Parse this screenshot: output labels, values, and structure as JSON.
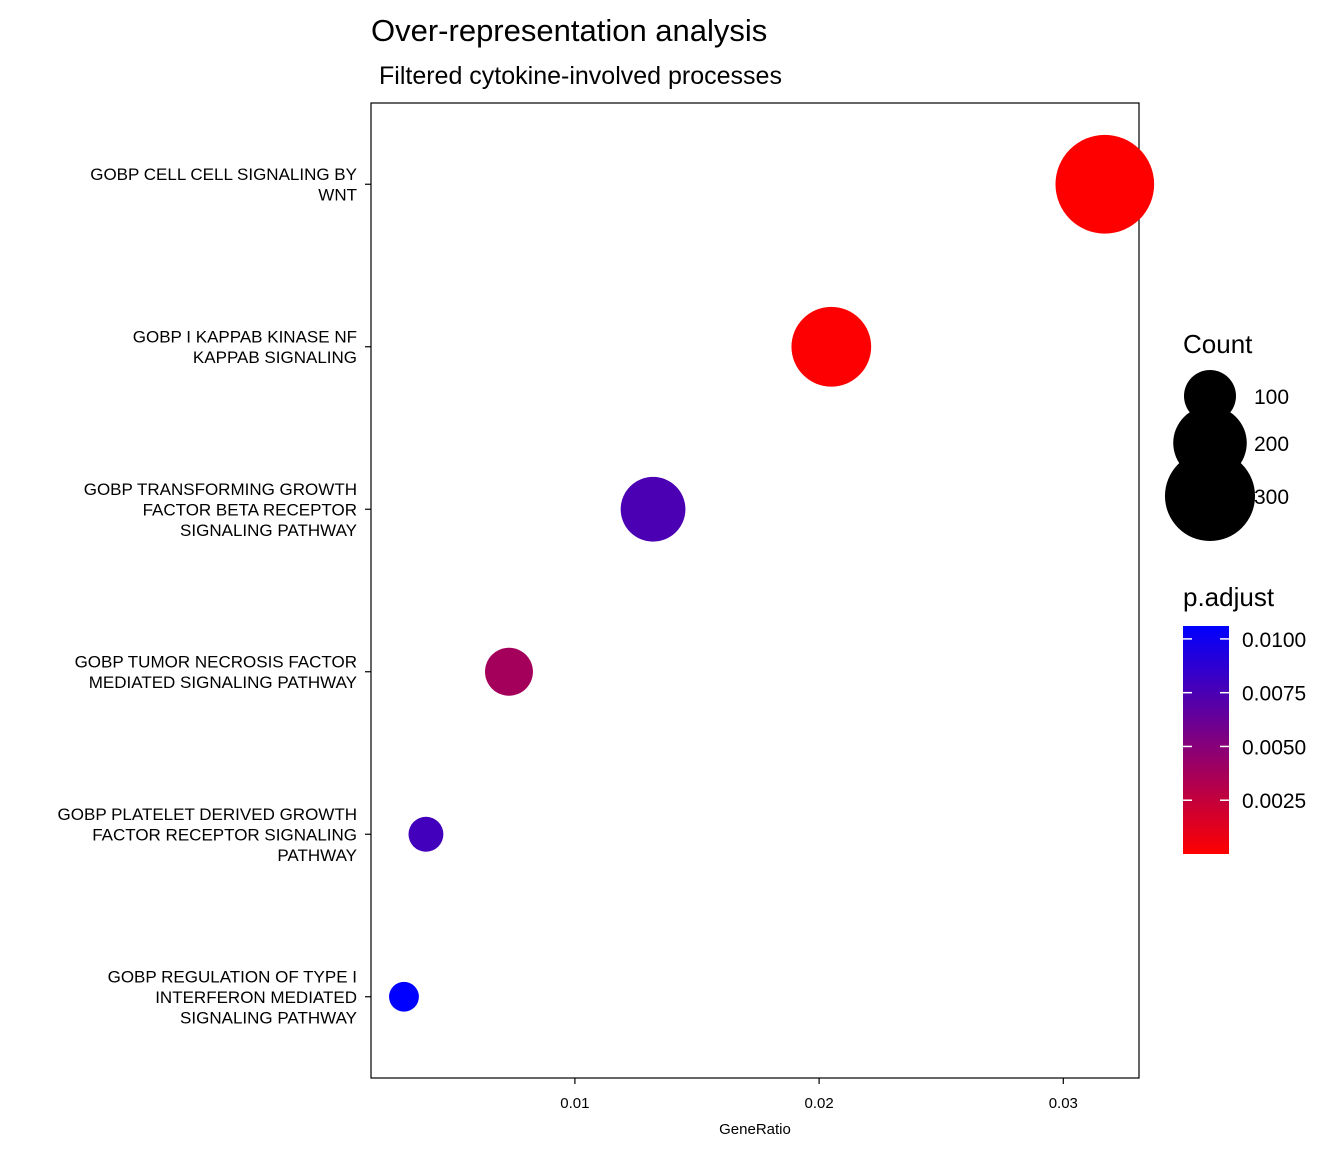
{
  "chart_data": {
    "type": "scatter",
    "title": "Over-representation analysis",
    "subtitle": "Filtered cytokine-involved processes",
    "xlabel": "GeneRatio",
    "ylabel": "",
    "xlim": [
      0.00165,
      0.0331
    ],
    "xticks": [
      0.01,
      0.02,
      0.03
    ],
    "xtick_labels": [
      "0.01",
      "0.02",
      "0.03"
    ],
    "categories": [
      [
        "GOBP CELL CELL SIGNALING BY",
        "WNT"
      ],
      [
        "GOBP I KAPPAB KINASE NF",
        "KAPPAB SIGNALING"
      ],
      [
        "GOBP TRANSFORMING GROWTH",
        "FACTOR BETA RECEPTOR",
        "SIGNALING PATHWAY"
      ],
      [
        "GOBP TUMOR NECROSIS FACTOR",
        "MEDIATED SIGNALING PATHWAY"
      ],
      [
        "GOBP PLATELET DERIVED GROWTH",
        "FACTOR RECEPTOR SIGNALING",
        "PATHWAY"
      ],
      [
        "GOBP REGULATION OF TYPE I",
        "INTERFERON MEDIATED",
        "SIGNALING PATHWAY"
      ]
    ],
    "points": [
      {
        "gene_ratio": 0.0317,
        "count": 360,
        "p_adjust": 0.0
      },
      {
        "gene_ratio": 0.0205,
        "count": 235,
        "p_adjust": 0.0001
      },
      {
        "gene_ratio": 0.0132,
        "count": 155,
        "p_adjust": 0.0075
      },
      {
        "gene_ratio": 0.0073,
        "count": 85,
        "p_adjust": 0.0038
      },
      {
        "gene_ratio": 0.0039,
        "count": 45,
        "p_adjust": 0.0078
      },
      {
        "gene_ratio": 0.003,
        "count": 33,
        "p_adjust": 0.0106
      }
    ],
    "size_legend": {
      "title": "Count",
      "values": [
        100,
        200,
        300
      ],
      "labels": [
        "100",
        "200",
        "300"
      ]
    },
    "color_legend": {
      "title": "p.adjust",
      "range": [
        0.0,
        0.0106
      ],
      "low_color": "#FF0000",
      "high_color": "#0000FF",
      "ticks": [
        0.0025,
        0.005,
        0.0075,
        0.01
      ],
      "tick_labels": [
        "0.0025",
        "0.0050",
        "0.0075",
        "0.0100"
      ]
    },
    "legend_position": "right",
    "grid": false
  }
}
